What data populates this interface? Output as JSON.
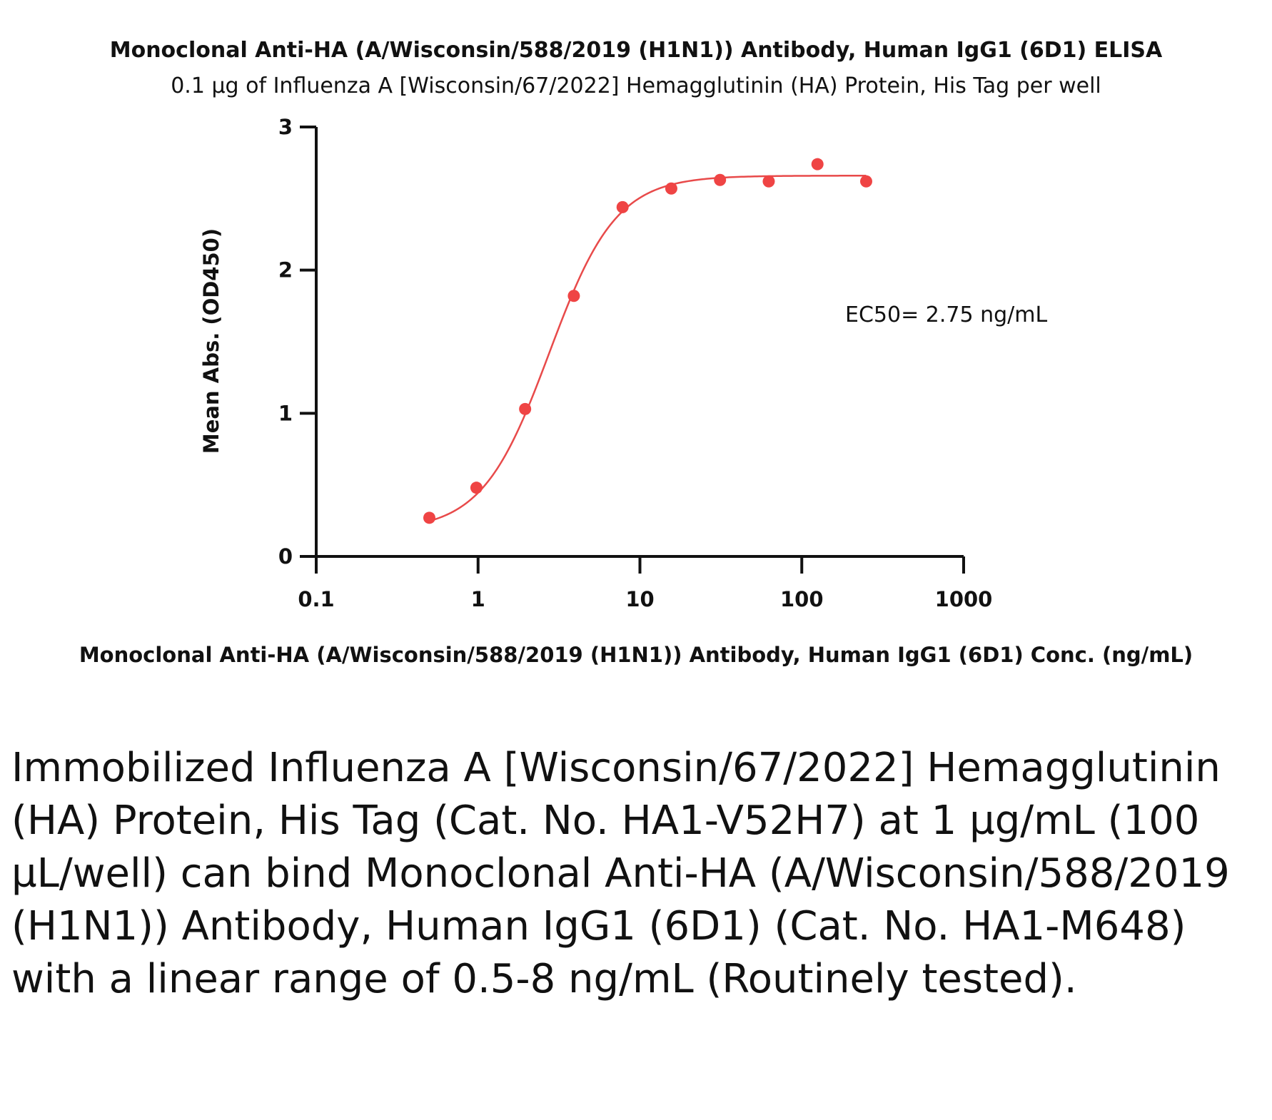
{
  "chart_data": {
    "type": "scatter",
    "title": "Monoclonal Anti-HA (A/Wisconsin/588/2019 (H1N1)) Antibody, Human IgG1 (6D1) ELISA",
    "subtitle": "0.1 µg of Influenza A [Wisconsin/67/2022] Hemagglutinin (HA) Protein, His Tag per well",
    "xlabel": "Monoclonal Anti-HA (A/Wisconsin/588/2019 (H1N1)) Antibody, Human IgG1 (6D1) Conc. (ng/mL)",
    "ylabel": "Mean Abs. (OD450)",
    "xscale": "log",
    "xlim": [
      0.1,
      1000
    ],
    "ylim": [
      0,
      3
    ],
    "xticks": [
      0.1,
      1,
      10,
      100,
      1000
    ],
    "xtick_labels": [
      "0.1",
      "1",
      "10",
      "100",
      "1000"
    ],
    "yticks": [
      0,
      1,
      2,
      3
    ],
    "ytick_labels": [
      "0",
      "1",
      "2",
      "3"
    ],
    "grid": false,
    "point_color": "#ef4444",
    "curve_color": "#e84a4a",
    "series": [
      {
        "x": [
          0.5,
          0.977,
          1.953,
          3.906,
          7.813,
          15.625,
          31.25,
          62.5,
          125,
          250
        ],
        "y": [
          0.27,
          0.48,
          1.03,
          1.82,
          2.44,
          2.57,
          2.63,
          2.62,
          2.74,
          2.62
        ]
      }
    ],
    "fit": {
      "bottom": 0.18,
      "top": 2.66,
      "ec50": 2.75,
      "hill": 2.1
    },
    "annotation": "EC50= 2.75 ng/mL"
  },
  "caption": "Immobilized Influenza A [Wisconsin/67/2022] Hemagglutinin (HA) Protein, His Tag (Cat. No. HA1-V52H7) at 1 µg/mL (100 µL/well) can bind Monoclonal Anti-HA (A/Wisconsin/588/2019 (H1N1)) Antibody, Human IgG1 (6D1) (Cat. No. HA1-M648) with a linear range of 0.5-8 ng/mL (Routinely tested)."
}
